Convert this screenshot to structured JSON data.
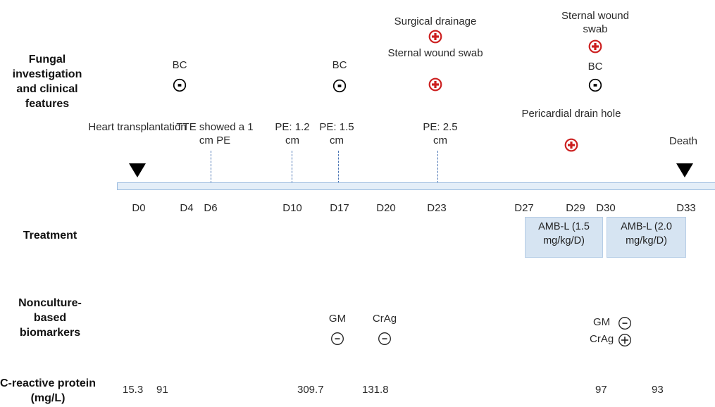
{
  "row_labels": {
    "fungal": "Fungal investigation and clinical features",
    "treatment": "Treatment",
    "nonculture": "Nonculture-based biomarkers",
    "crp": "C-reactive protein (mg/L)"
  },
  "events": {
    "heart_tx": "Heart transplantation",
    "tte": "TTE showed a 1 cm PE",
    "pe_1": "PE: 1.2 cm",
    "pe_2": "PE: 1.5 cm",
    "pe_3": "PE: 2.5 cm",
    "death": "Death",
    "bc_1": "BC",
    "bc_2": "BC",
    "bc_3": "BC",
    "surgical_drainage": "Surgical drainage",
    "swab_1": "Sternal wound swab",
    "swab_2": "Sternal wound swab",
    "drain_hole": "Pericardial drain hole"
  },
  "days": [
    "D0",
    "D4",
    "D6",
    "D10",
    "D17",
    "D20",
    "D23",
    "D27",
    "D29",
    "D30",
    "D33"
  ],
  "treatments": [
    {
      "label": "AMB-L (1.5 mg/kg/D)"
    },
    {
      "label": "AMB-L (2.0 mg/kg/D)"
    }
  ],
  "biomarkers": {
    "gm_1": "GM",
    "crag_1": "CrAg",
    "gm_2": "GM",
    "crag_2": "CrAg"
  },
  "crp_values": [
    "15.3",
    "91",
    "309.7",
    "131.8",
    "97",
    "93"
  ],
  "icons": {
    "negative": "minus-circle-icon",
    "positive_red": "plus-circle-red-icon",
    "positive": "plus-circle-icon",
    "event_marker": "down-triangle-icon"
  },
  "colors": {
    "positive": "#cc1f1f",
    "negative": "#000000",
    "timeline": "#dbe8f5",
    "treatment_box": "#d6e4f2"
  }
}
